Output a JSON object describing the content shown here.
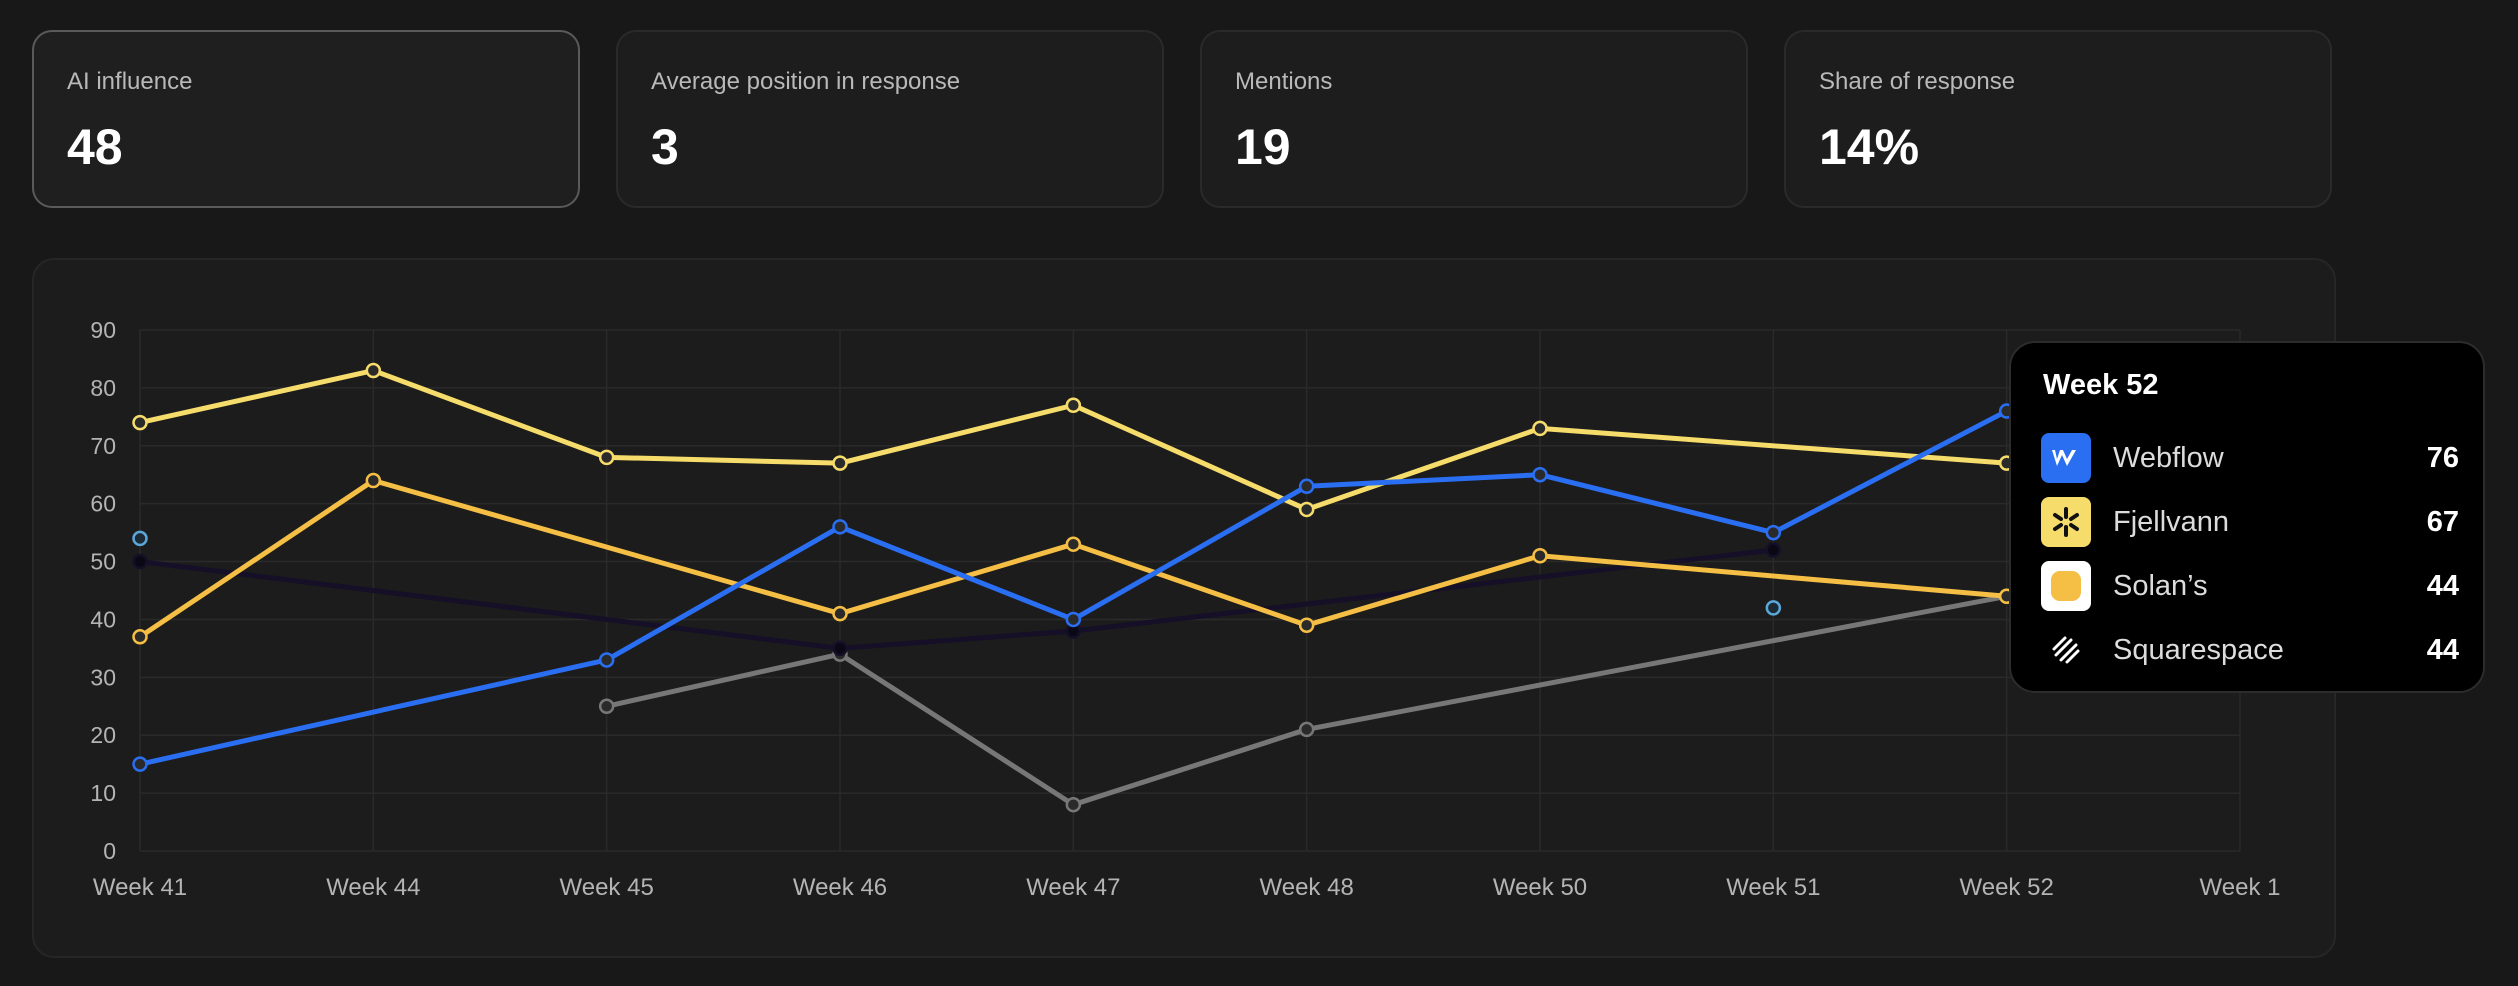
{
  "metrics": [
    {
      "label": "AI influence",
      "value": "48"
    },
    {
      "label": "Average position in response",
      "value": "3"
    },
    {
      "label": "Mentions",
      "value": "19"
    },
    {
      "label": "Share of response",
      "value": "14%"
    }
  ],
  "tooltip": {
    "title": "Week 52",
    "items": [
      {
        "name": "Webflow",
        "value": "76",
        "icon": "webflow-logo",
        "color": "#2a6ef2"
      },
      {
        "name": "Fjellvann",
        "value": "67",
        "icon": "fjellvann-logo",
        "color": "#f6dc6a"
      },
      {
        "name": "Solan’s",
        "value": "44",
        "icon": "solans-logo",
        "color": "#f5be45"
      },
      {
        "name": "Squarespace",
        "value": "44",
        "icon": "squarespace-logo",
        "color": "#ffffff"
      }
    ]
  },
  "chart_data": {
    "type": "line",
    "categories": [
      "Week 41",
      "Week 44",
      "Week 45",
      "Week 46",
      "Week 47",
      "Week 48",
      "Week 50",
      "Week 51",
      "Week 52",
      "Week 1"
    ],
    "ylim": [
      0,
      90
    ],
    "yticks": [
      0,
      10,
      20,
      30,
      40,
      50,
      60,
      70,
      80,
      90
    ],
    "grid": true,
    "series": [
      {
        "name": "Fjellvann",
        "color": "#f6dc6a",
        "values": [
          74,
          83,
          68,
          67,
          77,
          59,
          73,
          null,
          67,
          null
        ]
      },
      {
        "name": "Solan’s",
        "color": "#f5be45",
        "values": [
          37,
          64,
          null,
          41,
          53,
          39,
          51,
          null,
          44,
          null
        ]
      },
      {
        "name": "Webflow",
        "color": "#2a6ef2",
        "values": [
          15,
          null,
          33,
          56,
          40,
          63,
          65,
          55,
          76,
          null
        ]
      },
      {
        "name": "Squarespace",
        "color": "#777777",
        "values": [
          null,
          null,
          25,
          34,
          8,
          21,
          null,
          null,
          44,
          null
        ]
      },
      {
        "color": "#150f28",
        "values": [
          50,
          null,
          null,
          35,
          38,
          null,
          null,
          52,
          null,
          null
        ]
      },
      {
        "color": "#5aa7d8",
        "values": [
          54,
          null,
          null,
          null,
          null,
          null,
          null,
          42,
          null,
          null
        ]
      }
    ]
  }
}
